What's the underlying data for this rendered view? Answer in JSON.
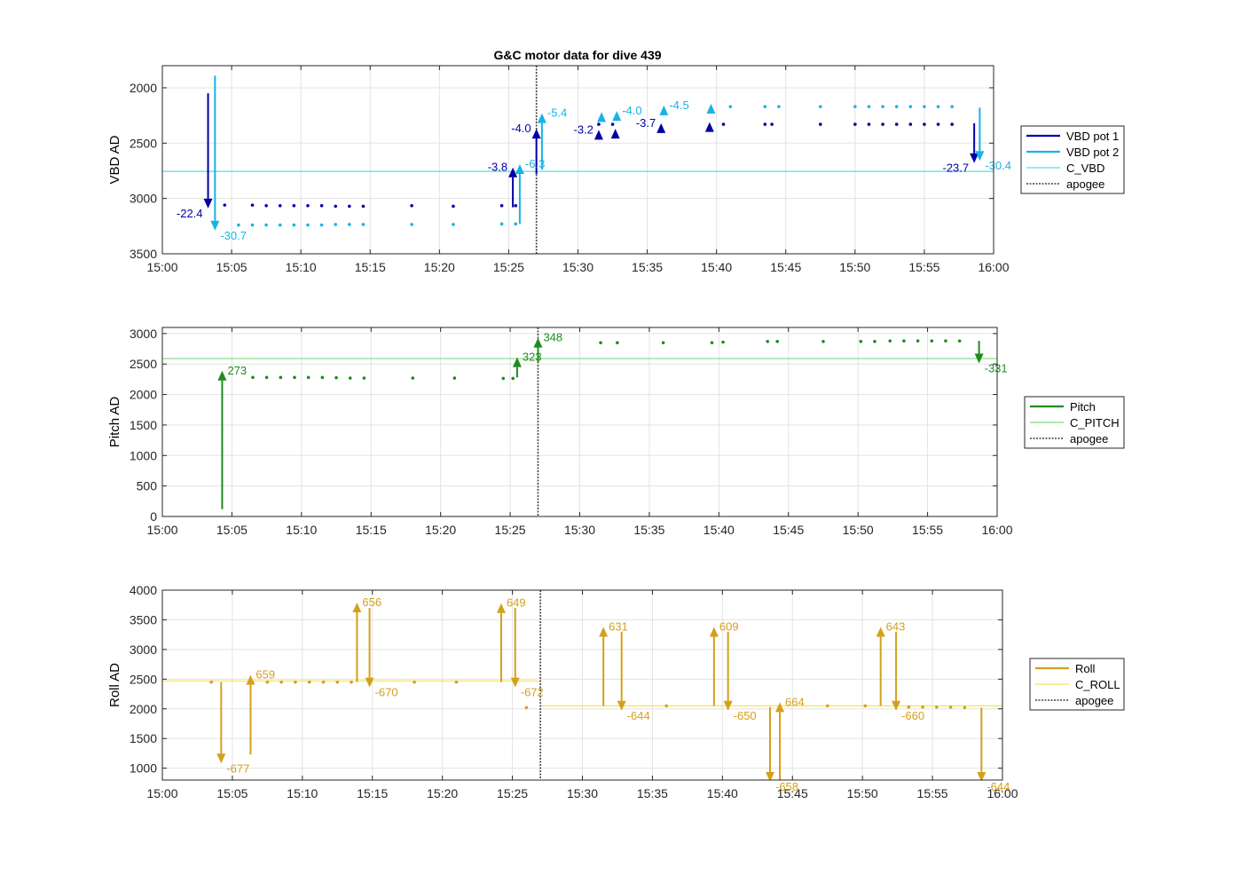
{
  "title": "G&C motor data for dive 439",
  "colors": {
    "vbd1": "#0000a8",
    "vbd2": "#17b3e6",
    "c_vbd": "#5fd8e8",
    "pitch": "#1e8c1e",
    "c_pitch": "#7fdc7f",
    "roll": "#d4a01c",
    "c_roll": "#f2e35a",
    "apogee": "#404040",
    "grid": "#e3e3e3",
    "axis": "#262626"
  },
  "chart_data": [
    {
      "type": "scatter",
      "ylabel": "VBD AD",
      "xlim": [
        "15:00",
        "16:00"
      ],
      "ylim": [
        1800,
        3500
      ],
      "y_reversed": true,
      "xticks": [
        "15:00",
        "15:05",
        "15:10",
        "15:15",
        "15:20",
        "15:25",
        "15:30",
        "15:35",
        "15:40",
        "15:45",
        "15:50",
        "15:55",
        "16:00"
      ],
      "yticks": [
        2000,
        2500,
        3000,
        3500
      ],
      "grid": true,
      "legend_position": "right",
      "legend": [
        {
          "label": "VBD pot 1",
          "style": "solid",
          "color_key": "vbd1"
        },
        {
          "label": "VBD pot 2",
          "style": "solid",
          "color_key": "vbd2"
        },
        {
          "label": "C_VBD",
          "style": "thin",
          "color_key": "c_vbd"
        },
        {
          "label": "apogee",
          "style": "dotted",
          "color_key": "apogee"
        }
      ],
      "hline": {
        "name": "C_VBD",
        "value": 2755,
        "color_key": "c_vbd"
      },
      "apogee": "15:27",
      "series": [
        {
          "name": "VBD pot 1",
          "color_key": "vbd1",
          "x": [
            "15:04.5",
            "15:06.5",
            "15:07.5",
            "15:08.5",
            "15:09.5",
            "15:10.5",
            "15:11.5",
            "15:12.5",
            "15:13.5",
            "15:14.5",
            "15:18",
            "15:21",
            "15:24.5",
            "15:25.5",
            "15:31.5",
            "15:32.5",
            "15:40.5",
            "15:43.5",
            "15:44",
            "15:47.5",
            "15:50",
            "15:51",
            "15:52",
            "15:53",
            "15:54",
            "15:55",
            "15:56",
            "15:57"
          ],
          "y": [
            3060,
            3060,
            3065,
            3065,
            3065,
            3065,
            3065,
            3070,
            3070,
            3070,
            3065,
            3070,
            3065,
            3065,
            2330,
            2330,
            2330,
            2330,
            2330,
            2330,
            2330,
            2330,
            2330,
            2330,
            2330,
            2330,
            2330,
            2330
          ]
        },
        {
          "name": "VBD pot 2",
          "color_key": "vbd2",
          "x": [
            "15:05.5",
            "15:06.5",
            "15:07.5",
            "15:08.5",
            "15:09.5",
            "15:10.5",
            "15:11.5",
            "15:12.5",
            "15:13.5",
            "15:14.5",
            "15:18",
            "15:21",
            "15:24.5",
            "15:25.5",
            "15:41",
            "15:43.5",
            "15:44.5",
            "15:47.5",
            "15:50",
            "15:51",
            "15:52",
            "15:53",
            "15:54",
            "15:55",
            "15:56",
            "15:57"
          ],
          "y": [
            3240,
            3240,
            3240,
            3240,
            3240,
            3240,
            3240,
            3235,
            3235,
            3235,
            3235,
            3235,
            3230,
            3230,
            2170,
            2170,
            2170,
            2170,
            2170,
            2170,
            2170,
            2170,
            2170,
            2170,
            2170,
            2170
          ]
        }
      ],
      "arrows": [
        {
          "x": "15:03.3",
          "y_from": 2050,
          "y_to": 3090,
          "color_key": "vbd1",
          "label": "-22.4",
          "label_side": "left"
        },
        {
          "x": "15:03.8",
          "y_from": 1890,
          "y_to": 3290,
          "color_key": "vbd2",
          "label": "-30.7",
          "label_side": "right"
        },
        {
          "x": "15:25.3",
          "y_from": 3080,
          "y_to": 2720,
          "color_key": "vbd1",
          "label": "-3.8",
          "label_side": "left"
        },
        {
          "x": "15:25.8",
          "y_from": 3230,
          "y_to": 2690,
          "color_key": "vbd2",
          "label": "-6.3",
          "label_side": "right"
        },
        {
          "x": "15:27.0",
          "y_from": 2780,
          "y_to": 2370,
          "color_key": "vbd1",
          "label": "-4.0",
          "label_side": "left"
        },
        {
          "x": "15:27.4",
          "y_from": 2740,
          "y_to": 2230,
          "color_key": "vbd2",
          "label": "-5.4",
          "label_side": "right"
        },
        {
          "x": "15:31.5",
          "y_from": 2410,
          "y_to": 2380,
          "color_key": "vbd1",
          "label": "-3.2",
          "label_side": "left"
        },
        {
          "x": "15:31.7",
          "y_from": 2250,
          "y_to": 2220,
          "color_key": "vbd2",
          "label": "",
          "label_side": "right"
        },
        {
          "x": "15:32.7",
          "y_from": 2400,
          "y_to": 2370,
          "color_key": "vbd1",
          "label": "",
          "label_side": "left"
        },
        {
          "x": "15:32.8",
          "y_from": 2240,
          "y_to": 2210,
          "color_key": "vbd2",
          "label": "-4.0",
          "label_side": "right"
        },
        {
          "x": "15:36.0",
          "y_from": 2350,
          "y_to": 2320,
          "color_key": "vbd1",
          "label": "-3.7",
          "label_side": "left"
        },
        {
          "x": "15:36.2",
          "y_from": 2190,
          "y_to": 2160,
          "color_key": "vbd2",
          "label": "-4.5",
          "label_side": "right"
        },
        {
          "x": "15:39.5",
          "y_from": 2340,
          "y_to": 2310,
          "color_key": "vbd1",
          "label": "",
          "label_side": "left"
        },
        {
          "x": "15:39.6",
          "y_from": 2175,
          "y_to": 2145,
          "color_key": "vbd2",
          "label": "",
          "label_side": "right"
        },
        {
          "x": "15:58.6",
          "y_from": 2320,
          "y_to": 2680,
          "color_key": "vbd1",
          "label": "-23.7",
          "label_side": "left"
        },
        {
          "x": "15:59.0",
          "y_from": 2180,
          "y_to": 2660,
          "color_key": "vbd2",
          "label": "-30.4",
          "label_side": "right"
        }
      ]
    },
    {
      "type": "scatter",
      "ylabel": "Pitch AD",
      "xlim": [
        "15:00",
        "16:00"
      ],
      "ylim": [
        0,
        3100
      ],
      "y_reversed": false,
      "xticks": [
        "15:00",
        "15:05",
        "15:10",
        "15:15",
        "15:20",
        "15:25",
        "15:30",
        "15:35",
        "15:40",
        "15:45",
        "15:50",
        "15:55",
        "16:00"
      ],
      "yticks": [
        0,
        500,
        1000,
        1500,
        2000,
        2500,
        3000
      ],
      "grid": true,
      "legend_position": "right",
      "legend": [
        {
          "label": "Pitch",
          "style": "solid",
          "color_key": "pitch"
        },
        {
          "label": "C_PITCH",
          "style": "thin",
          "color_key": "c_pitch"
        },
        {
          "label": "apogee",
          "style": "dotted",
          "color_key": "apogee"
        }
      ],
      "hline": {
        "name": "C_PITCH",
        "value": 2590,
        "color_key": "c_pitch"
      },
      "apogee": "15:27",
      "series": [
        {
          "name": "Pitch",
          "color_key": "pitch",
          "x": [
            "15:06.5",
            "15:07.5",
            "15:08.5",
            "15:09.5",
            "15:10.5",
            "15:11.5",
            "15:12.5",
            "15:13.5",
            "15:14.5",
            "15:18",
            "15:21",
            "15:24.5",
            "15:25.2",
            "15:31.5",
            "15:32.7",
            "15:36",
            "15:39.5",
            "15:40.3",
            "15:43.5",
            "15:44.2",
            "15:47.5",
            "15:50.2",
            "15:51.2",
            "15:52.3",
            "15:53.3",
            "15:54.3",
            "15:55.3",
            "15:56.3",
            "15:57.3"
          ],
          "y": [
            2280,
            2280,
            2280,
            2280,
            2280,
            2280,
            2275,
            2270,
            2270,
            2270,
            2270,
            2265,
            2265,
            2850,
            2850,
            2850,
            2850,
            2860,
            2870,
            2870,
            2870,
            2870,
            2870,
            2880,
            2880,
            2880,
            2880,
            2880,
            2880
          ]
        }
      ],
      "arrows": [
        {
          "x": "15:04.3",
          "y_from": 120,
          "y_to": 2390,
          "color_key": "pitch",
          "label": "273",
          "label_side": "right"
        },
        {
          "x": "15:25.5",
          "y_from": 2280,
          "y_to": 2610,
          "color_key": "pitch",
          "label": "323",
          "label_side": "right"
        },
        {
          "x": "15:27.0",
          "y_from": 2540,
          "y_to": 2930,
          "color_key": "pitch",
          "label": "348",
          "label_side": "right"
        },
        {
          "x": "15:58.7",
          "y_from": 2880,
          "y_to": 2510,
          "color_key": "pitch",
          "label": "-331",
          "label_side": "right"
        }
      ]
    },
    {
      "type": "scatter",
      "ylabel": "Roll AD",
      "xlim": [
        "15:00",
        "16:00"
      ],
      "ylim": [
        800,
        4000
      ],
      "y_reversed": false,
      "xticks": [
        "15:00",
        "15:05",
        "15:10",
        "15:15",
        "15:20",
        "15:25",
        "15:30",
        "15:35",
        "15:40",
        "15:45",
        "15:50",
        "15:55",
        "16:00"
      ],
      "yticks": [
        1000,
        1500,
        2000,
        2500,
        3000,
        3500,
        4000
      ],
      "grid": true,
      "legend_position": "right",
      "legend": [
        {
          "label": "Roll",
          "style": "solid",
          "color_key": "roll"
        },
        {
          "label": "C_ROLL",
          "style": "thin",
          "color_key": "c_roll"
        },
        {
          "label": "apogee",
          "style": "dotted",
          "color_key": "apogee"
        }
      ],
      "hline_segments": [
        {
          "name": "C_ROLL",
          "x_from": "15:00",
          "x_to": "15:27",
          "value": 2470,
          "color_key": "c_roll"
        },
        {
          "name": "C_ROLL",
          "x_from": "15:27",
          "x_to": "16:00",
          "value": 2050,
          "color_key": "c_roll"
        }
      ],
      "apogee": "15:27",
      "series": [
        {
          "name": "Roll",
          "color_key": "roll",
          "x": [
            "15:03.5",
            "15:07.5",
            "15:08.5",
            "15:09.5",
            "15:10.5",
            "15:11.5",
            "15:12.5",
            "15:13.5",
            "15:18",
            "15:21",
            "15:26",
            "15:36",
            "15:47.5",
            "15:50.2",
            "15:53.3",
            "15:54.3",
            "15:55.3",
            "15:56.3",
            "15:57.3"
          ],
          "y": [
            2450,
            2450,
            2450,
            2450,
            2450,
            2450,
            2450,
            2450,
            2450,
            2450,
            2020,
            2050,
            2050,
            2050,
            2030,
            2030,
            2030,
            2030,
            2020
          ]
        }
      ],
      "arrows": [
        {
          "x": "15:04.2",
          "y_from": 2450,
          "y_to": 1080,
          "color_key": "roll",
          "label": "-677",
          "label_side": "right"
        },
        {
          "x": "15:06.3",
          "y_from": 1230,
          "y_to": 2570,
          "color_key": "roll",
          "label": "659",
          "label_side": "right"
        },
        {
          "x": "15:13.9",
          "y_from": 2450,
          "y_to": 3790,
          "color_key": "roll",
          "label": "656",
          "label_side": "right"
        },
        {
          "x": "15:14.8",
          "y_from": 3700,
          "y_to": 2360,
          "color_key": "roll",
          "label": "-670",
          "label_side": "right"
        },
        {
          "x": "15:24.2",
          "y_from": 2450,
          "y_to": 3780,
          "color_key": "roll",
          "label": "649",
          "label_side": "right"
        },
        {
          "x": "15:25.2",
          "y_from": 3700,
          "y_to": 2360,
          "color_key": "roll",
          "label": "-672",
          "label_side": "right"
        },
        {
          "x": "15:31.5",
          "y_from": 2050,
          "y_to": 3380,
          "color_key": "roll",
          "label": "631",
          "label_side": "right"
        },
        {
          "x": "15:32.8",
          "y_from": 3300,
          "y_to": 1970,
          "color_key": "roll",
          "label": "-644",
          "label_side": "right"
        },
        {
          "x": "15:39.4",
          "y_from": 2050,
          "y_to": 3380,
          "color_key": "roll",
          "label": "609",
          "label_side": "right"
        },
        {
          "x": "15:40.4",
          "y_from": 3300,
          "y_to": 1970,
          "color_key": "roll",
          "label": "-650",
          "label_side": "right"
        },
        {
          "x": "15:43.4",
          "y_from": 2030,
          "y_to": 770,
          "color_key": "roll",
          "label": "-658",
          "label_side": "right"
        },
        {
          "x": "15:44.1",
          "y_from": 790,
          "y_to": 2110,
          "color_key": "roll",
          "label": "664",
          "label_side": "right"
        },
        {
          "x": "15:51.3",
          "y_from": 2050,
          "y_to": 3380,
          "color_key": "roll",
          "label": "643",
          "label_side": "right"
        },
        {
          "x": "15:52.4",
          "y_from": 3300,
          "y_to": 1970,
          "color_key": "roll",
          "label": "-660",
          "label_side": "right"
        },
        {
          "x": "15:58.5",
          "y_from": 2020,
          "y_to": 770,
          "color_key": "roll",
          "label": "-644",
          "label_side": "right"
        }
      ]
    }
  ]
}
